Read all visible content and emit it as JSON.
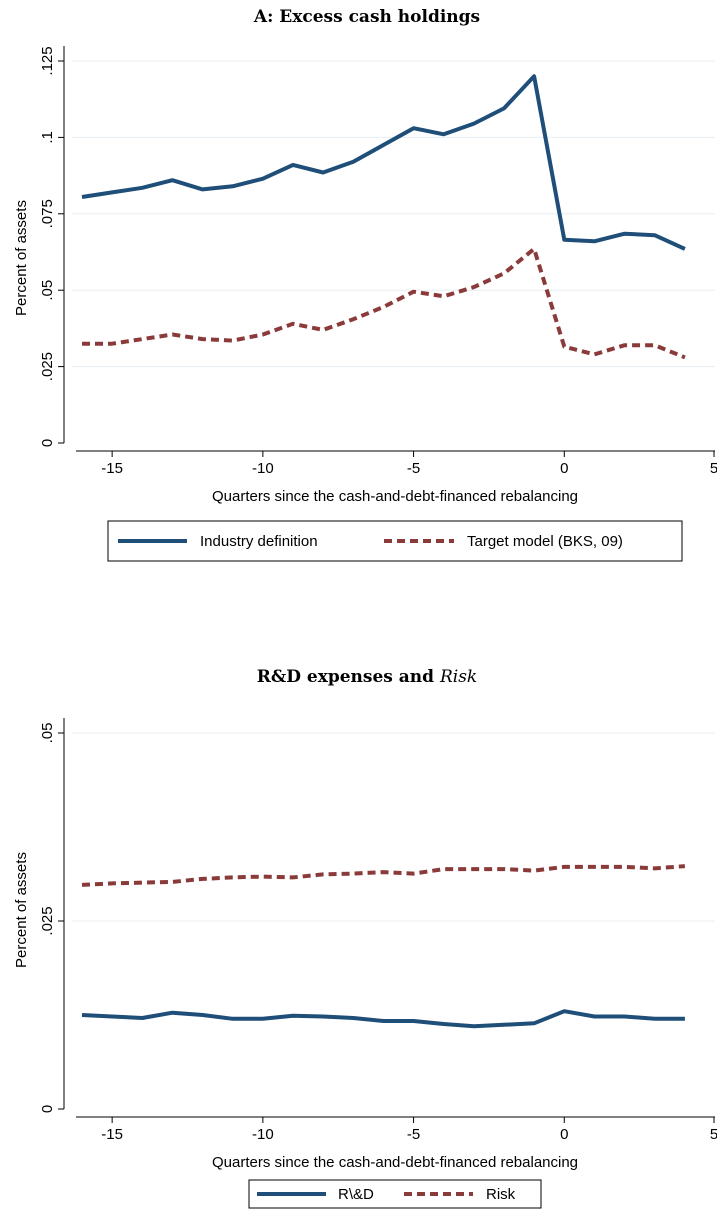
{
  "colors": {
    "series1": "#1f4e79",
    "series2": "#8b3a3a",
    "grid": "#e8eef2",
    "axis": "#000000"
  },
  "chart_data": [
    {
      "type": "line",
      "title": "A: Excess cash holdings",
      "xlabel": "Quarters since the cash-and-debt-financed rebalancing",
      "ylabel": "Percent of assets",
      "xlim": [
        -16,
        5
      ],
      "ylim": [
        0,
        0.125
      ],
      "xticks": [
        -15,
        -10,
        -5,
        0,
        5
      ],
      "xtick_labels": [
        "-15",
        "-10",
        "-5",
        "0",
        "5"
      ],
      "yticks": [
        0,
        0.025,
        0.05,
        0.075,
        0.1,
        0.125
      ],
      "ytick_labels": [
        "0",
        ".025",
        ".05",
        ".075",
        ".1",
        ".125"
      ],
      "grid": true,
      "legend_position": "bottom",
      "x": [
        -16,
        -15,
        -14,
        -13,
        -12,
        -11,
        -10,
        -9,
        -8,
        -7,
        -6,
        -5,
        -4,
        -3,
        -2,
        -1,
        0,
        1,
        2,
        3,
        4
      ],
      "series": [
        {
          "name": "Industry definition",
          "style": "solid",
          "values": [
            0.0805,
            0.082,
            0.0835,
            0.086,
            0.083,
            0.084,
            0.0865,
            0.091,
            0.0885,
            0.092,
            0.0975,
            0.103,
            0.101,
            0.1045,
            0.1095,
            0.12,
            0.0665,
            0.066,
            0.0685,
            0.068,
            0.0635
          ]
        },
        {
          "name": "Target model (BKS, 09)",
          "style": "dashed",
          "values": [
            0.0325,
            0.0325,
            0.034,
            0.0355,
            0.034,
            0.0335,
            0.0355,
            0.039,
            0.037,
            0.0405,
            0.0445,
            0.0495,
            0.048,
            0.051,
            0.0555,
            0.0635,
            0.0315,
            0.029,
            0.032,
            0.032,
            0.028
          ]
        }
      ]
    },
    {
      "type": "line",
      "title_main": "R&D expenses and ",
      "title_italic": "Risk",
      "xlabel": "Quarters since the cash-and-debt-financed rebalancing",
      "ylabel": "Percent of assets",
      "xlim": [
        -16,
        5
      ],
      "ylim": [
        0,
        0.05
      ],
      "xticks": [
        -15,
        -10,
        -5,
        0,
        5
      ],
      "xtick_labels": [
        "-15",
        "-10",
        "-5",
        "0",
        "5"
      ],
      "yticks": [
        0,
        0.025,
        0.05
      ],
      "ytick_labels": [
        "0",
        ".025",
        ".05"
      ],
      "grid": true,
      "legend_position": "bottom",
      "x": [
        -16,
        -15,
        -14,
        -13,
        -12,
        -11,
        -10,
        -9,
        -8,
        -7,
        -6,
        -5,
        -4,
        -3,
        -2,
        -1,
        0,
        1,
        2,
        3,
        4
      ],
      "series": [
        {
          "name": "R\\&D",
          "style": "solid",
          "values": [
            0.0125,
            0.0123,
            0.0121,
            0.0128,
            0.0125,
            0.012,
            0.012,
            0.0124,
            0.0123,
            0.0121,
            0.0117,
            0.0117,
            0.0113,
            0.011,
            0.0112,
            0.0114,
            0.013,
            0.0123,
            0.0123,
            0.012,
            0.012
          ]
        },
        {
          "name": "Risk",
          "style": "dashed",
          "values": [
            0.0298,
            0.03,
            0.0301,
            0.0302,
            0.0306,
            0.0308,
            0.0309,
            0.0308,
            0.0312,
            0.0313,
            0.0315,
            0.0313,
            0.0319,
            0.0319,
            0.0319,
            0.0317,
            0.0322,
            0.0322,
            0.0322,
            0.032,
            0.0323
          ]
        }
      ]
    }
  ]
}
